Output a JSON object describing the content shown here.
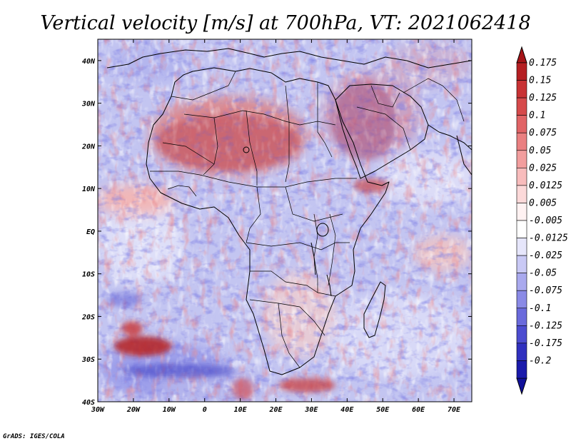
{
  "title": "Vertical velocity [m/s] at 700hPa, VT: 2021062418",
  "credit": "GrADS: IGES/COLA",
  "map": {
    "lon_range": [
      -30,
      75
    ],
    "lat_range": [
      -40,
      45
    ],
    "lon_ticks": [
      {
        "value": -30,
        "label": "30W"
      },
      {
        "value": -20,
        "label": "20W"
      },
      {
        "value": -10,
        "label": "10W"
      },
      {
        "value": 0,
        "label": "0"
      },
      {
        "value": 10,
        "label": "10E"
      },
      {
        "value": 20,
        "label": "20E"
      },
      {
        "value": 30,
        "label": "30E"
      },
      {
        "value": 40,
        "label": "40E"
      },
      {
        "value": 50,
        "label": "50E"
      },
      {
        "value": 60,
        "label": "60E"
      },
      {
        "value": 70,
        "label": "70E"
      }
    ],
    "lat_ticks": [
      {
        "value": 40,
        "label": "40N"
      },
      {
        "value": 30,
        "label": "30N"
      },
      {
        "value": 20,
        "label": "20N"
      },
      {
        "value": 10,
        "label": "10N"
      },
      {
        "value": 0,
        "label": "EQ"
      },
      {
        "value": -10,
        "label": "10S"
      },
      {
        "value": -20,
        "label": "20S"
      },
      {
        "value": -30,
        "label": "30S"
      },
      {
        "value": -40,
        "label": "40S"
      }
    ]
  },
  "colorbar": {
    "levels": [
      {
        "label": "0.175",
        "color": "#b51f22"
      },
      {
        "label": "0.15",
        "color": "#c83234"
      },
      {
        "label": "0.125",
        "color": "#d64a4b"
      },
      {
        "label": "0.1",
        "color": "#e16466"
      },
      {
        "label": "0.075",
        "color": "#ea8081"
      },
      {
        "label": "0.05",
        "color": "#f29e9e"
      },
      {
        "label": "0.025",
        "color": "#f8bcbc"
      },
      {
        "label": "0.0125",
        "color": "#fcd9d9"
      },
      {
        "label": "0.005",
        "color": "#fff2f2"
      },
      {
        "label": "-0.005",
        "color": "#ffffff"
      },
      {
        "label": "-0.0125",
        "color": "#e6e6fb"
      },
      {
        "label": "-0.025",
        "color": "#c9c9f5"
      },
      {
        "label": "-0.05",
        "color": "#a9a9ee"
      },
      {
        "label": "-0.075",
        "color": "#8a8ae6"
      },
      {
        "label": "-0.1",
        "color": "#6a6adc"
      },
      {
        "label": "-0.125",
        "color": "#4c4cd0"
      },
      {
        "label": "-0.175",
        "color": "#3030bf"
      },
      {
        "label": "-0.2",
        "color": "#1a1aab"
      }
    ],
    "top_tip_color": "#a51418",
    "bottom_tip_color": "#10109a"
  }
}
